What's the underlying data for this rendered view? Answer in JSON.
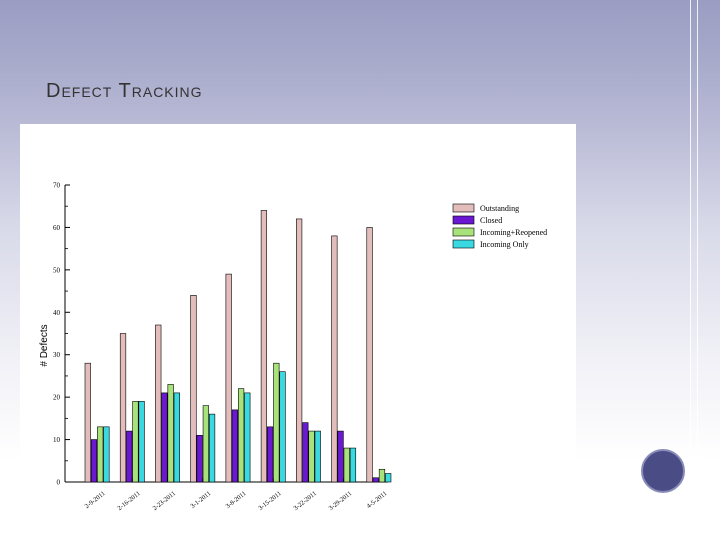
{
  "slide": {
    "title": "Defect Tracking",
    "colors": {
      "background_top": "#9a9cc2",
      "background_bottom": "#ffffff",
      "circle": "#4a4c86"
    }
  },
  "chart_data": {
    "type": "bar",
    "title": "",
    "xlabel": "",
    "ylabel": "# Defects",
    "ylim": [
      0,
      70
    ],
    "yticks": [
      0,
      10,
      20,
      30,
      40,
      50,
      60,
      70
    ],
    "grid": false,
    "legend_position": "top-right",
    "categories": [
      "2-9-2011",
      "2-16-2011",
      "2-23-2011",
      "3-1-2011",
      "3-8-2011",
      "3-15-2011",
      "3-22-2011",
      "3-29-2011",
      "4-5-2011"
    ],
    "series": [
      {
        "name": "Outstanding",
        "color": "#e3bcbc",
        "values": [
          28,
          35,
          37,
          44,
          49,
          64,
          62,
          58,
          60
        ]
      },
      {
        "name": "Closed",
        "color": "#6a18d2",
        "values": [
          10,
          12,
          21,
          11,
          17,
          13,
          14,
          12,
          1
        ]
      },
      {
        "name": "Incoming+Reopened",
        "color": "#a8e27a",
        "values": [
          13,
          19,
          23,
          18,
          22,
          28,
          12,
          8,
          3
        ]
      },
      {
        "name": "Incoming Only",
        "color": "#3ad9e2",
        "values": [
          13,
          19,
          21,
          16,
          21,
          26,
          12,
          8,
          2
        ]
      }
    ]
  }
}
